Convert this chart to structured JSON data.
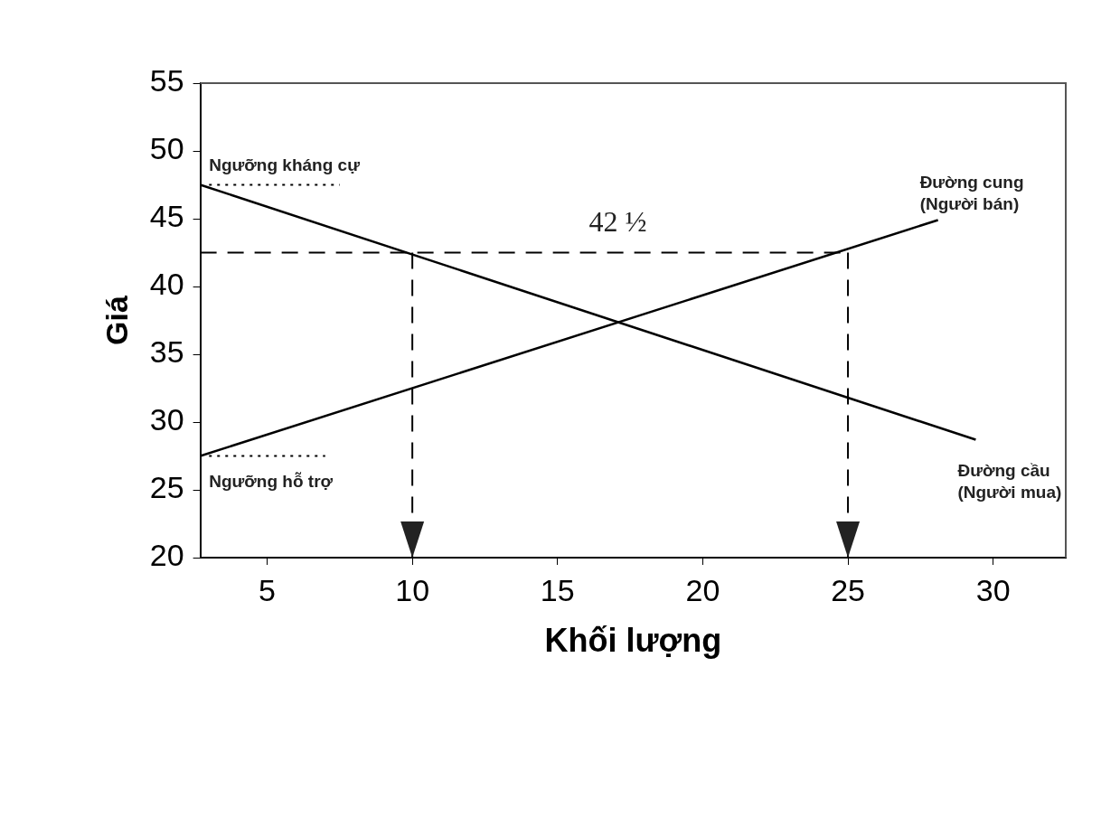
{
  "chart_data": {
    "type": "line",
    "xlabel": "Khối lượng",
    "ylabel": "Giá",
    "xlim": [
      2.7,
      32.5
    ],
    "xticks": [
      5,
      10,
      15,
      20,
      25,
      30
    ],
    "ylim": [
      20,
      55
    ],
    "yticks": [
      20,
      25,
      30,
      35,
      40,
      45,
      50,
      55
    ],
    "grid": false,
    "legend": false,
    "marker": "none",
    "line_style": "solid",
    "series": [
      {
        "name": "Đường cung (Người bán)",
        "color": "#000000",
        "x": [
          2.7,
          28.1
        ],
        "values": [
          27.5,
          44.9
        ]
      },
      {
        "name": "Đường cầu (Người mua)",
        "color": "#000000",
        "x": [
          2.7,
          29.4
        ],
        "values": [
          47.5,
          28.7
        ]
      },
      {
        "color": "#000000",
        "line_style": "dashed",
        "x": [
          2.7,
          25
        ],
        "values": [
          42.5,
          42.5
        ]
      },
      {
        "color": "#000000",
        "line_style": "dashed",
        "x": [
          10,
          10
        ],
        "values": [
          42.5,
          20
        ]
      },
      {
        "color": "#000000",
        "line_style": "dashed",
        "x": [
          25,
          25
        ],
        "values": [
          42.5,
          20
        ]
      },
      {
        "color": "#000000",
        "line_style": "dotted",
        "x": [
          3,
          7.5
        ],
        "values": [
          47.5,
          47.5
        ]
      },
      {
        "color": "#000000",
        "line_style": "dotted",
        "x": [
          3,
          7
        ],
        "values": [
          27.5,
          27.5
        ]
      }
    ],
    "annotations": [
      "Ngưỡng kháng cự",
      "Ngưỡng hỗ trợ",
      "42 ½"
    ]
  }
}
